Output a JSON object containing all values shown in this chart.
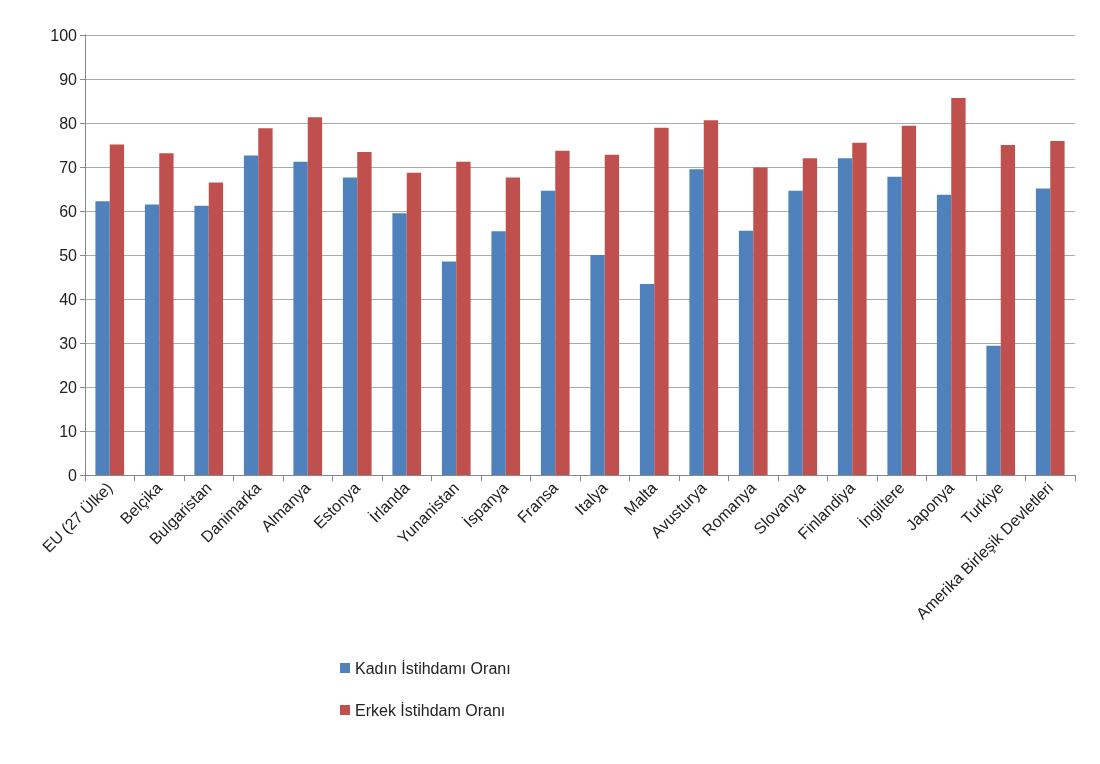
{
  "chart_data": {
    "type": "bar",
    "categories": [
      "EU (27 Ülke)",
      "Belçika",
      "Bulgaristan",
      "Danimarka",
      "Almanya",
      "Estonya",
      "İrlanda",
      "Yunanistan",
      "İspanya",
      "Fransa",
      "Italya",
      "Malta",
      "Avusturya",
      "Romanya",
      "Slovanya",
      "Finlandiya",
      "İngiltere",
      "Japonya",
      "Turkiye",
      "Amerika Birleşik Devletleri"
    ],
    "series": [
      {
        "name": "Kadın İstihdamı Oranı",
        "color": "#4f81bd",
        "values": [
          62.2,
          61.5,
          61.2,
          72.6,
          71.2,
          67.6,
          59.5,
          48.5,
          55.4,
          64.6,
          50.0,
          43.4,
          69.5,
          55.5,
          64.6,
          72.0,
          67.8,
          63.7,
          29.4,
          65.1
        ]
      },
      {
        "name": "Erkek İstihdam Oranı",
        "color": "#c0504d",
        "values": [
          75.1,
          73.1,
          66.5,
          78.8,
          81.3,
          73.4,
          68.7,
          71.2,
          67.6,
          73.7,
          72.8,
          78.9,
          80.6,
          69.9,
          72.0,
          75.5,
          79.4,
          85.7,
          75.0,
          75.9
        ]
      }
    ],
    "ylim": [
      0,
      100
    ],
    "yticks": [
      0,
      10,
      20,
      30,
      40,
      50,
      60,
      70,
      80,
      90,
      100
    ],
    "grid": "y",
    "legend": "bottom"
  }
}
